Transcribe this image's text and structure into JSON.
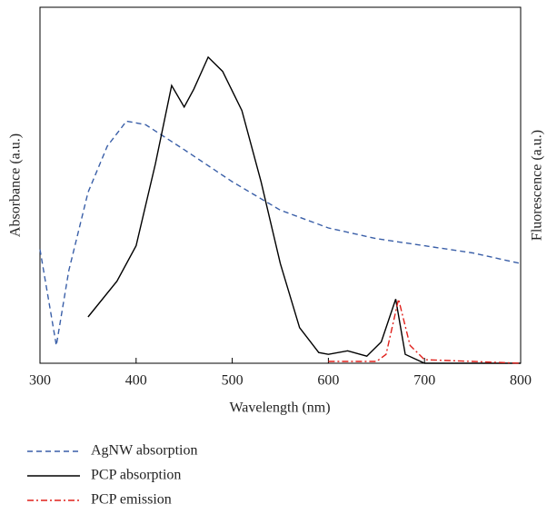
{
  "chart_data": {
    "type": "line",
    "xlabel": "Wavelength (nm)",
    "ylabel": "Absorbance (a.u.)",
    "y2label": "Fluorescence (a.u.)",
    "xlim": [
      300,
      800
    ],
    "xticks": [
      300,
      400,
      500,
      600,
      700,
      800
    ],
    "ylim": [
      0,
      1
    ],
    "y2lim": [
      0,
      1
    ],
    "series": [
      {
        "name": "AgNW absorption",
        "color": "#3a5fa8",
        "dash": "6,4",
        "x": [
          300,
          317,
          330,
          350,
          370,
          390,
          410,
          450,
          500,
          550,
          600,
          650,
          700,
          750,
          800
        ],
        "values": [
          0.32,
          0.05,
          0.26,
          0.48,
          0.61,
          0.68,
          0.67,
          0.6,
          0.51,
          0.43,
          0.38,
          0.35,
          0.33,
          0.31,
          0.28
        ]
      },
      {
        "name": "PCP absorption",
        "color": "#000000",
        "dash": "none",
        "x": [
          350,
          380,
          400,
          420,
          437,
          450,
          460,
          475,
          490,
          510,
          530,
          550,
          570,
          590,
          600,
          620,
          640,
          655,
          670,
          680,
          700,
          800
        ],
        "values": [
          0.13,
          0.23,
          0.33,
          0.56,
          0.78,
          0.72,
          0.77,
          0.86,
          0.82,
          0.71,
          0.51,
          0.28,
          0.1,
          0.03,
          0.025,
          0.035,
          0.02,
          0.06,
          0.18,
          0.025,
          0,
          0
        ]
      },
      {
        "name": "PCP emission",
        "color": "#e0201b",
        "dash": "7,3,2,3",
        "axis": "y2",
        "x": [
          600,
          650,
          660,
          673,
          685,
          700,
          750,
          800
        ],
        "values": [
          0.005,
          0.005,
          0.025,
          0.18,
          0.05,
          0.01,
          0.005,
          0
        ]
      }
    ]
  }
}
